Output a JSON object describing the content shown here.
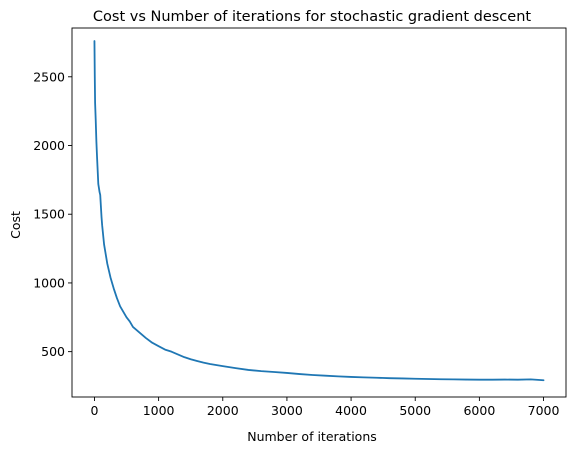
{
  "chart_data": {
    "type": "line",
    "title": "Cost vs Number of iterations for stochastic gradient descent",
    "xlabel": "Number of iterations",
    "ylabel": "Cost",
    "xlim": [
      -350,
      7350
    ],
    "ylim": [
      170,
      2855
    ],
    "xticks": [
      0,
      1000,
      2000,
      3000,
      4000,
      5000,
      6000,
      7000
    ],
    "yticks": [
      500,
      1000,
      1500,
      2000,
      2500
    ],
    "grid": false,
    "series": [
      {
        "color": "#1f77b4",
        "x": [
          0,
          5,
          10,
          20,
          30,
          40,
          50,
          60,
          70,
          80,
          90,
          100,
          110,
          120,
          150,
          200,
          250,
          300,
          350,
          400,
          450,
          500,
          550,
          600,
          650,
          700,
          800,
          900,
          1000,
          1100,
          1200,
          1300,
          1400,
          1500,
          1600,
          1700,
          1800,
          2000,
          2200,
          2400,
          2600,
          2800,
          3000,
          3200,
          3400,
          3600,
          3800,
          4000,
          4200,
          4400,
          4600,
          4800,
          5000,
          5200,
          5400,
          5600,
          5800,
          6000,
          6200,
          6400,
          6600,
          6800,
          7000
        ],
        "y": [
          2760,
          2500,
          2310,
          2180,
          2030,
          1920,
          1820,
          1720,
          1690,
          1660,
          1640,
          1560,
          1480,
          1420,
          1280,
          1140,
          1040,
          960,
          890,
          830,
          790,
          750,
          720,
          680,
          660,
          640,
          600,
          565,
          540,
          515,
          500,
          480,
          460,
          445,
          432,
          420,
          410,
          395,
          380,
          367,
          358,
          352,
          345,
          337,
          330,
          325,
          320,
          316,
          313,
          310,
          307,
          305,
          303,
          301,
          299,
          298,
          297,
          296,
          296,
          297,
          296,
          298,
          292
        ]
      }
    ]
  }
}
